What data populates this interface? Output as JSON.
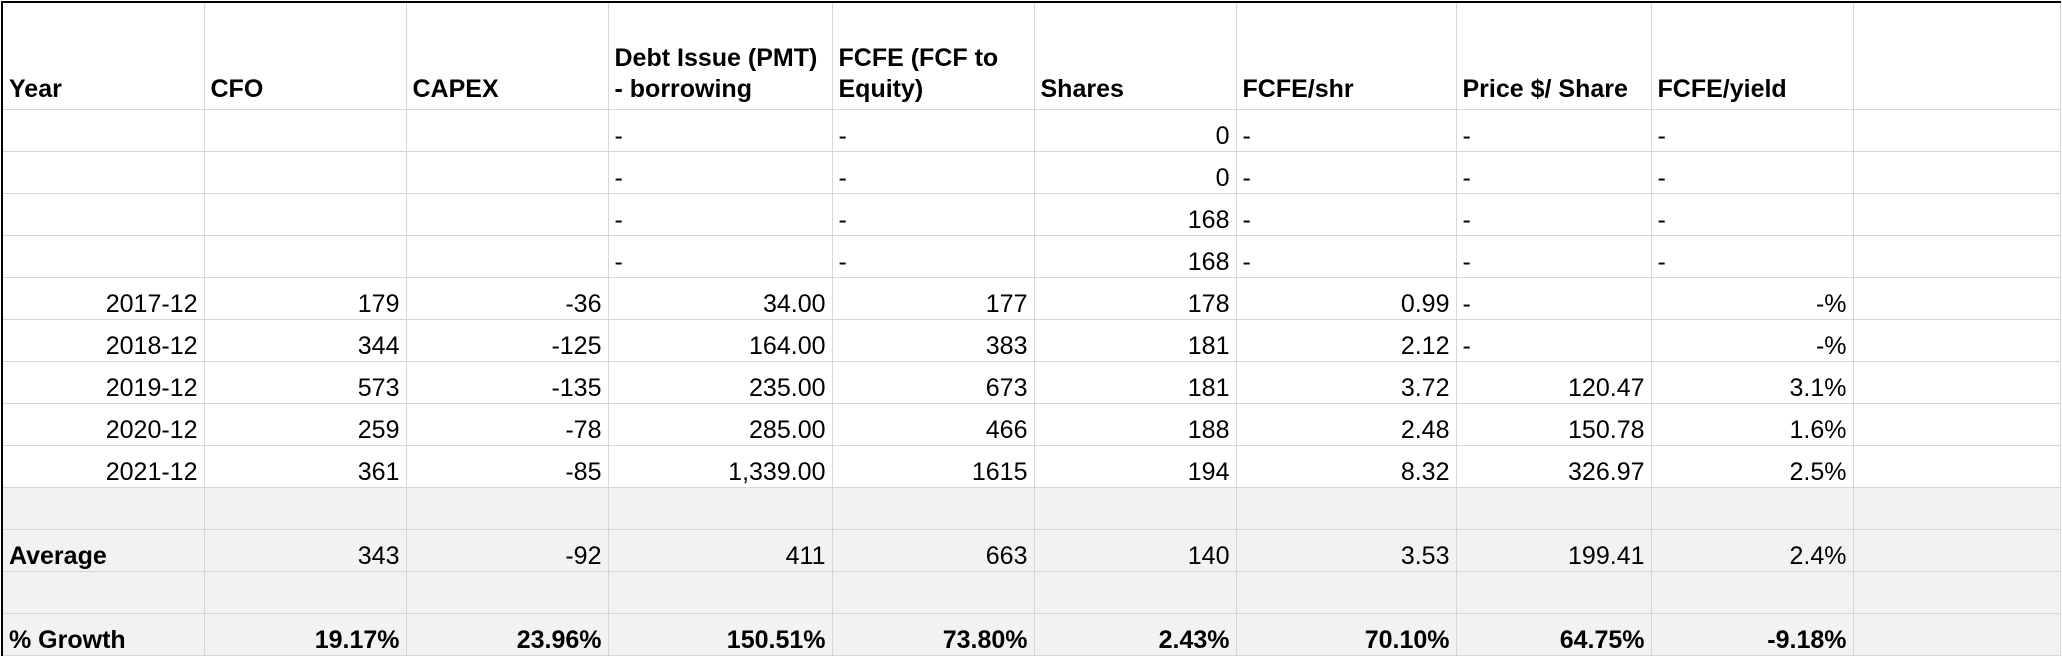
{
  "headers": [
    "Year",
    "CFO",
    "CAPEX",
    "Debt Issue (PMT) - borrowing",
    "FCFE (FCF to Equity)",
    "Shares",
    "FCFE/shr",
    "Price $/ Share",
    "FCFE/yield",
    ""
  ],
  "rows": [
    [
      "",
      "",
      "",
      "-",
      "-",
      "0",
      "-",
      "-",
      "-",
      ""
    ],
    [
      "",
      "",
      "",
      "-",
      "-",
      "0",
      "-",
      "-",
      "-",
      ""
    ],
    [
      "",
      "",
      "",
      "-",
      "-",
      "168",
      "-",
      "-",
      "-",
      ""
    ],
    [
      "",
      "",
      "",
      "-",
      "-",
      "168",
      "-",
      "-",
      "-",
      ""
    ],
    [
      "2017-12",
      "179",
      "-36",
      "34.00",
      "177",
      "178",
      "0.99",
      "-",
      "-%",
      ""
    ],
    [
      "2018-12",
      "344",
      "-125",
      "164.00",
      "383",
      "181",
      "2.12",
      "-",
      "-%",
      ""
    ],
    [
      "2019-12",
      "573",
      "-135",
      "235.00",
      "673",
      "181",
      "3.72",
      "120.47",
      "3.1%",
      ""
    ],
    [
      "2020-12",
      "259",
      "-78",
      "285.00",
      "466",
      "188",
      "2.48",
      "150.78",
      "1.6%",
      ""
    ],
    [
      "2021-12",
      "361",
      "-85",
      "1,339.00",
      "1615",
      "194",
      "8.32",
      "326.97",
      "2.5%",
      ""
    ]
  ],
  "average": [
    "Average",
    "343",
    "-92",
    "411",
    "663",
    "140",
    "3.53",
    "199.41",
    "2.4%",
    ""
  ],
  "growth": [
    "% Growth",
    "19.17%",
    "23.96%",
    "150.51%",
    "73.80%",
    "2.43%",
    "70.10%",
    "64.75%",
    "-9.18%",
    ""
  ]
}
